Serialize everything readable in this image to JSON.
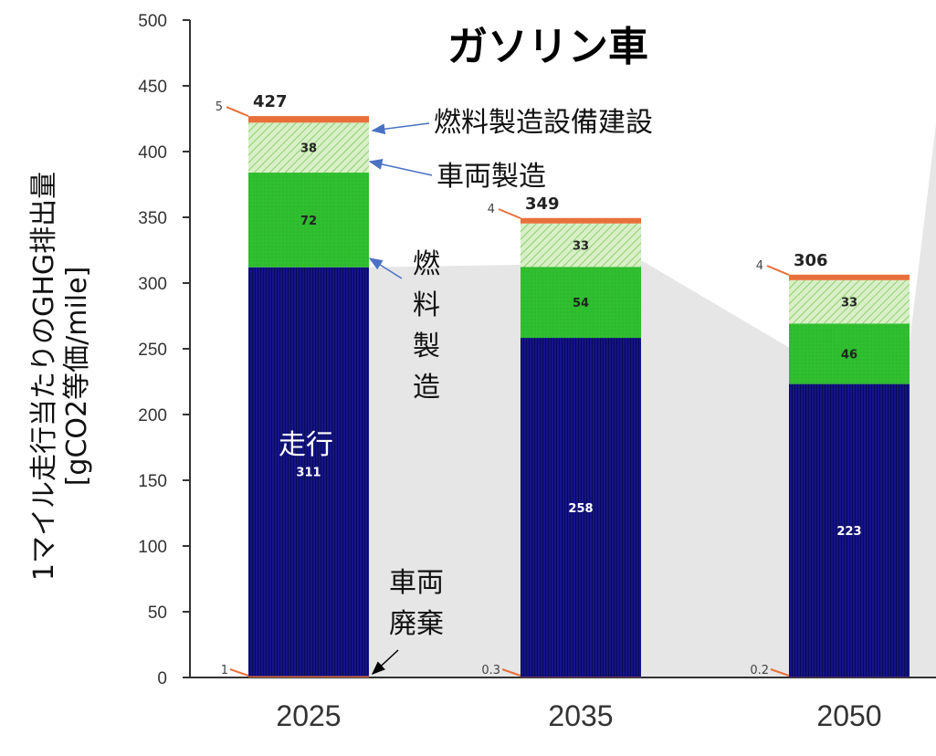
{
  "chart_data": {
    "type": "bar",
    "stacked": true,
    "title": "ガソリン車",
    "ylabel_line1": "1マイル走行当たりのGHG排出量",
    "ylabel_line2": "[gCO2等価/mile]",
    "xlabel": "",
    "categories": [
      "2025",
      "2035",
      "2050"
    ],
    "ylim": [
      0,
      500
    ],
    "yticks": [
      "0",
      "50",
      "100",
      "150",
      "200",
      "250",
      "300",
      "350",
      "400",
      "450",
      "500"
    ],
    "series": [
      {
        "name": "車両廃棄",
        "values": [
          1,
          0.3,
          0.2
        ],
        "value_labels": [
          "1",
          "0.3",
          "0.2"
        ],
        "color": "#e8703a"
      },
      {
        "name": "走行",
        "values": [
          311,
          258,
          223
        ],
        "value_labels": [
          "311",
          "258",
          "223"
        ],
        "color": "#11117a"
      },
      {
        "name": "燃料製造",
        "values": [
          72,
          54,
          46
        ],
        "value_labels": [
          "72",
          "54",
          "46"
        ],
        "color": "#2fbf2f"
      },
      {
        "name": "車両製造",
        "values": [
          38,
          33,
          33
        ],
        "value_labels": [
          "38",
          "33",
          "33"
        ],
        "color": "#c8e8b4"
      },
      {
        "name": "燃料製造設備建設",
        "values": [
          5,
          4,
          4
        ],
        "value_labels": [
          "5",
          "4",
          "4"
        ],
        "color": "#e8703a"
      }
    ],
    "totals": [
      "427",
      "349",
      "306"
    ],
    "grid": false
  },
  "annotations": {
    "infra": "燃料製造設備建設",
    "vehicle_mfg": "車両製造",
    "fuel_mfg": [
      "燃",
      "料",
      "製",
      "造"
    ],
    "driving": "走行",
    "disposal": [
      "車両",
      "廃棄"
    ]
  },
  "colors": {
    "axis": "#333333",
    "shadow": "#e6e6e6",
    "arrow": "#4a72c4"
  }
}
